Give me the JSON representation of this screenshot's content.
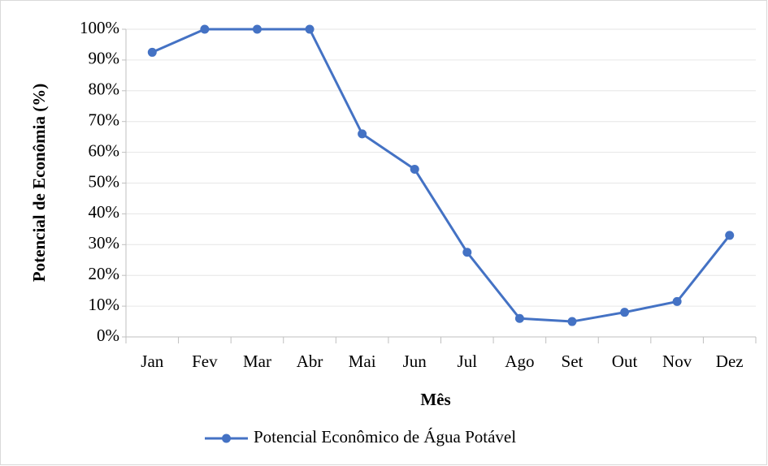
{
  "chart_data": {
    "type": "line",
    "x_label": "Mês",
    "y_label": "Potencial de Econômia (%)",
    "categories": [
      "Jan",
      "Fev",
      "Mar",
      "Abr",
      "Mai",
      "Jun",
      "Jul",
      "Ago",
      "Set",
      "Out",
      "Nov",
      "Dez"
    ],
    "series": [
      {
        "name": "Potencial Econômico de Água Potável",
        "color": "#4472c4",
        "values": [
          92.5,
          100,
          100,
          100,
          66,
          54.5,
          27.5,
          6,
          5,
          8,
          11.5,
          33
        ]
      }
    ],
    "ylim": [
      0,
      100
    ],
    "yticks": [
      {
        "value": 0,
        "label": "0%"
      },
      {
        "value": 10,
        "label": "10%"
      },
      {
        "value": 20,
        "label": "20%"
      },
      {
        "value": 30,
        "label": "30%"
      },
      {
        "value": 40,
        "label": "40%"
      },
      {
        "value": 50,
        "label": "50%"
      },
      {
        "value": 60,
        "label": "60%"
      },
      {
        "value": 70,
        "label": "70%"
      },
      {
        "value": 80,
        "label": "80%"
      },
      {
        "value": 90,
        "label": "90%"
      },
      {
        "value": 100,
        "label": "100%"
      }
    ],
    "grid": true,
    "legend": "bottom"
  }
}
